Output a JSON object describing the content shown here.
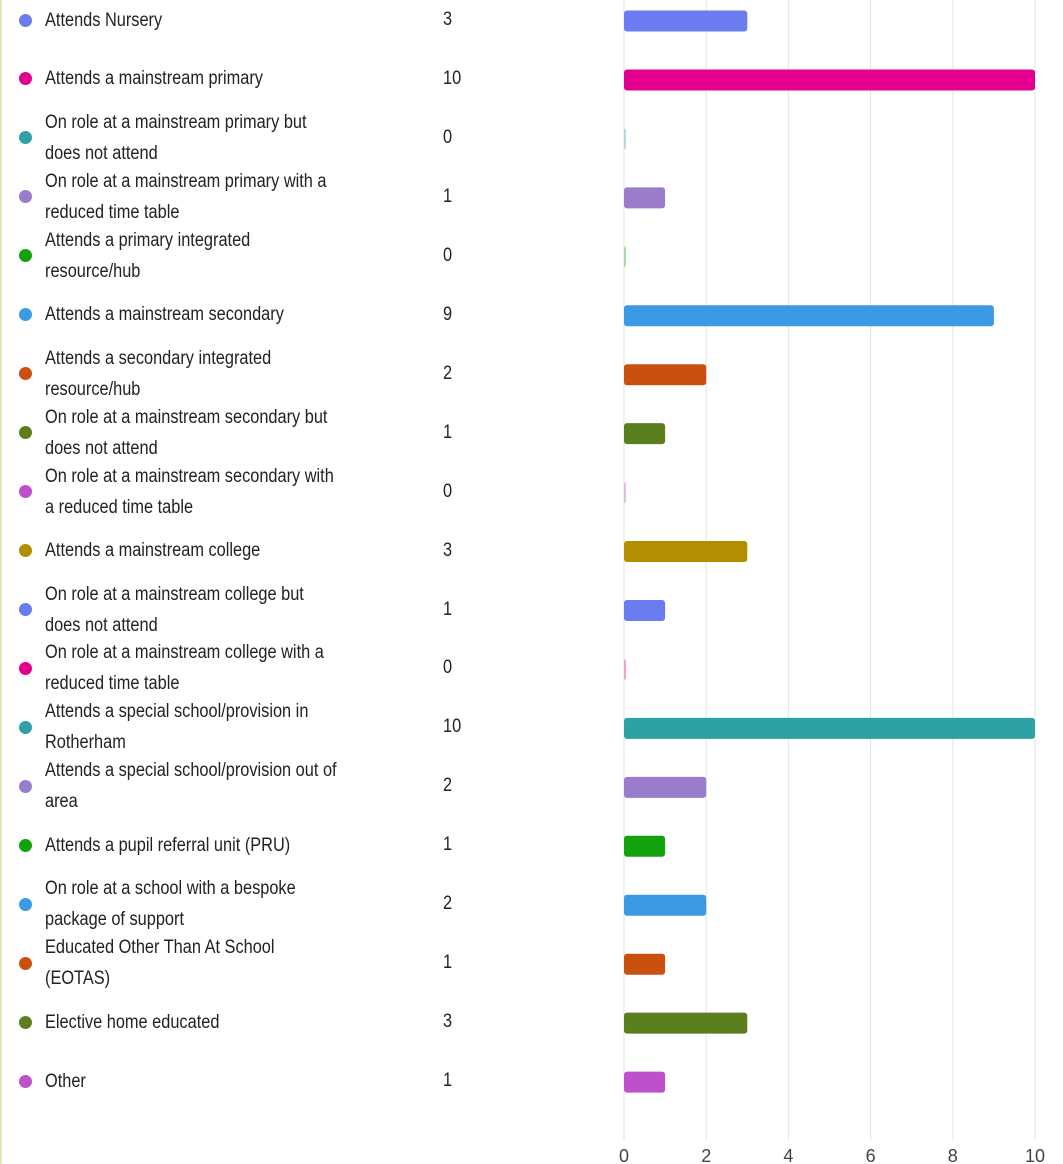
{
  "chart_data": {
    "type": "bar",
    "orientation": "horizontal",
    "title": "",
    "xlabel": "",
    "ylabel": "",
    "xlim": [
      0,
      10
    ],
    "x_ticks": [
      "0",
      "2",
      "4",
      "6",
      "8",
      "10"
    ],
    "grid": true,
    "legend_position": "left",
    "categories": [
      "Attends Nursery",
      "Attends a mainstream primary",
      "On role at a mainstream primary but does not attend",
      "On role at a mainstream primary with a reduced time table",
      "Attends a primary integrated resource/hub",
      "Attends a mainstream secondary",
      "Attends a secondary integrated resource/hub",
      "On role at a mainstream secondary but does not attend",
      "On role at a mainstream secondary with a reduced time table",
      "Attends a mainstream college",
      "On role at a mainstream college but does not attend",
      "On role at a mainstream college with a reduced time table",
      "Attends a special school/provision in Rotherham",
      "Attends a special school/provision out of area",
      "Attends a pupil referral unit (PRU)",
      "On role at a school with a bespoke package of support",
      "Educated Other Than At School (EOTAS)",
      "Elective home educated",
      "Other"
    ],
    "values": [
      3,
      10,
      0,
      1,
      0,
      9,
      2,
      1,
      0,
      3,
      1,
      0,
      10,
      2,
      1,
      2,
      1,
      3,
      1
    ],
    "value_labels": [
      "3",
      "10",
      "0",
      "1",
      "0",
      "9",
      "2",
      "1",
      "0",
      "3",
      "1",
      "0",
      "10",
      "2",
      "1",
      "2",
      "1",
      "3",
      "1"
    ],
    "colors": [
      "#6b7bf0",
      "#e3008c",
      "#2ca2a6",
      "#9a7ccc",
      "#13a10e",
      "#3b9ae4",
      "#ca5010",
      "#5b7f1d",
      "#bd51ca",
      "#b28f00",
      "#6b7bf0",
      "#e3008c",
      "#2ca2a6",
      "#9a7ccc",
      "#13a10e",
      "#3b9ae4",
      "#ca5010",
      "#5b7f1d",
      "#bd51ca"
    ]
  }
}
